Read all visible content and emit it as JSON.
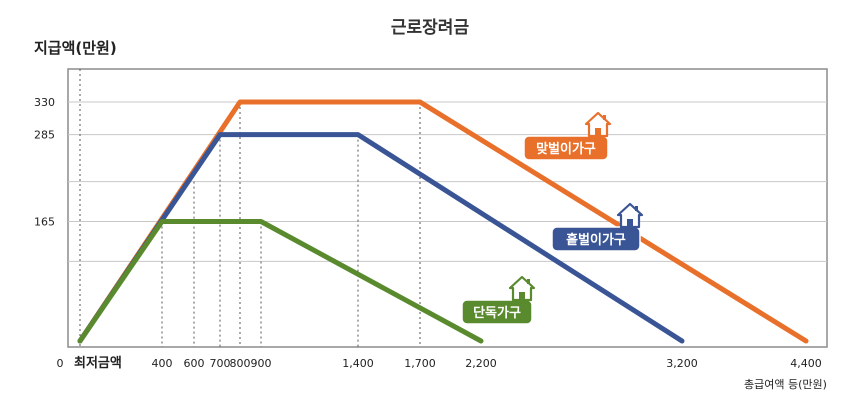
{
  "chart_data": {
    "type": "line",
    "title": "근로장려금",
    "ylabel": "지급액(만원)",
    "xlabel": "총급여액 등(만원)",
    "min_label": "최저금액",
    "xlim": [
      0,
      4400
    ],
    "ylim": [
      0,
      400
    ],
    "yticks": [
      {
        "value": 165,
        "label": "165"
      },
      {
        "value": 285,
        "label": "285"
      },
      {
        "value": 330,
        "label": "330"
      }
    ],
    "y_origin_label": "0",
    "xticks": [
      {
        "value": 400,
        "label": "400"
      },
      {
        "value": 600,
        "label": "600"
      },
      {
        "value": 700,
        "label": "700"
      },
      {
        "value": 800,
        "label": "800"
      },
      {
        "value": 900,
        "label": "900"
      },
      {
        "value": 1400,
        "label": "1,400"
      },
      {
        "value": 1700,
        "label": "1,700"
      },
      {
        "value": 2200,
        "label": "2,200"
      },
      {
        "value": 3200,
        "label": "3,200"
      },
      {
        "value": 4400,
        "label": "4,400"
      }
    ],
    "grid_values": [
      110,
      220
    ],
    "series": [
      {
        "name": "맞벌이가구",
        "color": "#e8702a",
        "icon": "house-icon",
        "x": [
          0,
          800,
          1700,
          4400
        ],
        "y": [
          0,
          330,
          330,
          0
        ]
      },
      {
        "name": "홑벌이가구",
        "color": "#3a5595",
        "icon": "house-icon",
        "x": [
          0,
          700,
          1400,
          3200
        ],
        "y": [
          0,
          285,
          285,
          0
        ]
      },
      {
        "name": "단독가구",
        "color": "#5a8a2e",
        "icon": "house-icon",
        "x": [
          0,
          400,
          900,
          2200
        ],
        "y": [
          0,
          165,
          165,
          0
        ]
      }
    ]
  }
}
